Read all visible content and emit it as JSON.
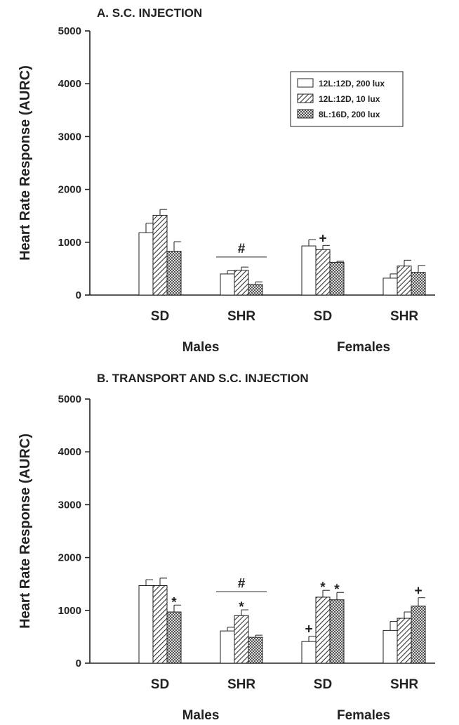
{
  "chart_data": [
    {
      "type": "bar",
      "title": "A. S.C. INJECTION",
      "ylabel": "Heart Rate Response (AURC)",
      "ylim": [
        0,
        5000
      ],
      "yticks": [
        0,
        1000,
        2000,
        3000,
        4000,
        5000
      ],
      "categories": [
        "SD",
        "SHR",
        "SD",
        "SHR"
      ],
      "groups": [
        {
          "label": "Males",
          "categories": [
            0,
            1
          ]
        },
        {
          "label": "Females",
          "categories": [
            2,
            3
          ]
        }
      ],
      "legend_position": "top-right",
      "series": [
        {
          "name": "12L:12D, 200 lux",
          "pattern": "open",
          "values": [
            1180,
            400,
            930,
            320
          ],
          "errors": [
            180,
            60,
            120,
            80
          ]
        },
        {
          "name": "12L:12D, 10 lux",
          "pattern": "hatched",
          "values": [
            1510,
            470,
            860,
            550
          ],
          "errors": [
            110,
            60,
            80,
            110
          ]
        },
        {
          "name": "8L:16D, 200 lux",
          "pattern": "crosshatched",
          "values": [
            830,
            200,
            620,
            430
          ],
          "errors": [
            180,
            50,
            20,
            130
          ]
        }
      ],
      "annotations": [
        {
          "text": "#",
          "category": 1,
          "bracket": true,
          "y": 720
        },
        {
          "text": "+",
          "category": 2,
          "series": 1
        }
      ]
    },
    {
      "type": "bar",
      "title": "B. TRANSPORT AND S.C. INJECTION",
      "ylabel": "Heart Rate Response (AURC)",
      "ylim": [
        0,
        5000
      ],
      "yticks": [
        0,
        1000,
        2000,
        3000,
        4000,
        5000
      ],
      "categories": [
        "SD",
        "SHR",
        "SD",
        "SHR"
      ],
      "groups": [
        {
          "label": "Males",
          "categories": [
            0,
            1
          ]
        },
        {
          "label": "Females",
          "categories": [
            2,
            3
          ]
        }
      ],
      "series": [
        {
          "name": "12L:12D, 200 lux",
          "pattern": "open",
          "values": [
            1470,
            610,
            410,
            620
          ],
          "errors": [
            110,
            70,
            100,
            170
          ]
        },
        {
          "name": "12L:12D, 10 lux",
          "pattern": "hatched",
          "values": [
            1470,
            900,
            1250,
            850
          ],
          "errors": [
            140,
            110,
            130,
            120
          ]
        },
        {
          "name": "8L:16D, 200 lux",
          "pattern": "crosshatched",
          "values": [
            970,
            490,
            1200,
            1080
          ],
          "errors": [
            130,
            40,
            140,
            160
          ]
        }
      ],
      "annotations": [
        {
          "text": "*",
          "category": 0,
          "series": 2
        },
        {
          "text": "#",
          "category": 1,
          "bracket": true,
          "y": 1350
        },
        {
          "text": "*",
          "category": 1,
          "series": 1
        },
        {
          "text": "+",
          "category": 2,
          "series": 0
        },
        {
          "text": "*",
          "category": 2,
          "series": 1
        },
        {
          "text": "*",
          "category": 2,
          "series": 2
        },
        {
          "text": "+",
          "category": 3,
          "series": 2
        }
      ]
    }
  ]
}
